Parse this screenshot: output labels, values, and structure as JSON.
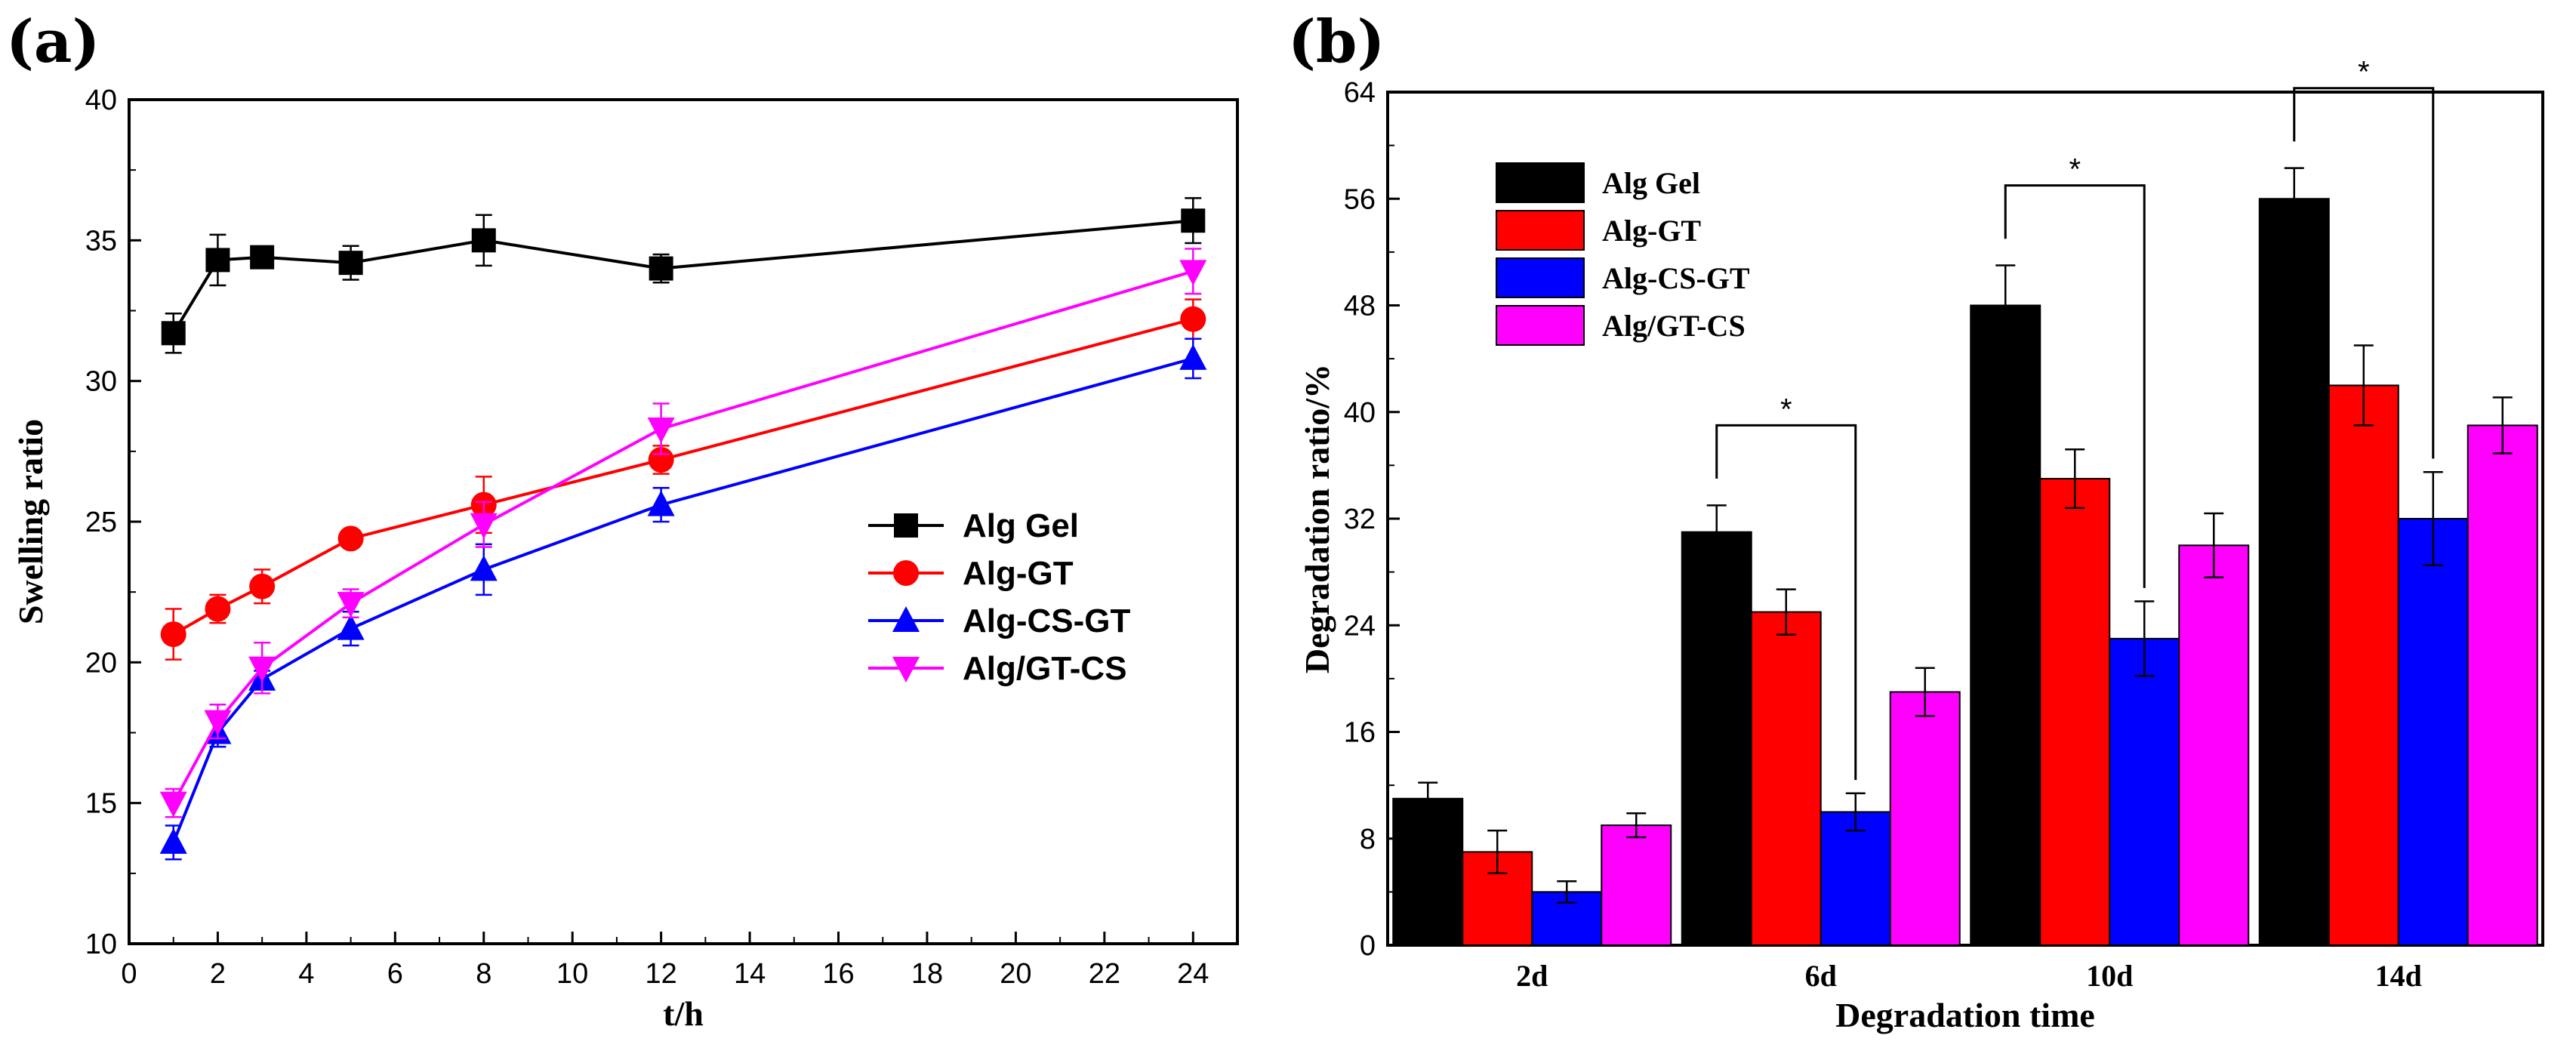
{
  "panels": {
    "a": {
      "label": "(a)"
    },
    "b": {
      "label": "(b)"
    }
  },
  "chart_data": [
    {
      "id": "a",
      "type": "line",
      "title": "",
      "xlabel": "t/h",
      "ylabel": "Swelling ratio",
      "xlim": [
        0,
        25
      ],
      "ylim": [
        10,
        40
      ],
      "xticks": [
        0,
        2,
        4,
        6,
        8,
        10,
        12,
        14,
        16,
        18,
        20,
        22,
        24
      ],
      "yticks": [
        10,
        15,
        20,
        25,
        30,
        35,
        40
      ],
      "legend_position": "center-right",
      "x": [
        1,
        2,
        3,
        5,
        8,
        12,
        24
      ],
      "series": [
        {
          "name": "Alg Gel",
          "color": "#000000",
          "marker": "square",
          "values": [
            31.7,
            34.3,
            34.4,
            34.2,
            35.0,
            34.0,
            35.7
          ],
          "errors": [
            0.7,
            0.9,
            0.3,
            0.6,
            0.9,
            0.5,
            0.8
          ]
        },
        {
          "name": "Alg-GT",
          "color": "#ff0000",
          "marker": "circle",
          "values": [
            21.0,
            21.9,
            22.7,
            24.4,
            25.6,
            27.2,
            32.2
          ],
          "errors": [
            0.9,
            0.5,
            0.6,
            0.3,
            1.0,
            0.5,
            0.7
          ]
        },
        {
          "name": "Alg-CS-GT",
          "color": "#0000ff",
          "marker": "triangle-up",
          "values": [
            13.6,
            17.5,
            19.4,
            21.2,
            23.3,
            25.6,
            30.8
          ],
          "errors": [
            0.6,
            0.5,
            0.3,
            0.6,
            0.9,
            0.6,
            0.7
          ]
        },
        {
          "name": "Alg/GT-CS",
          "color": "#ff00ff",
          "marker": "triangle-down",
          "values": [
            15.0,
            17.9,
            19.8,
            22.1,
            24.9,
            28.3,
            33.9
          ],
          "errors": [
            0.5,
            0.6,
            0.9,
            0.5,
            0.8,
            0.9,
            0.8
          ]
        }
      ]
    },
    {
      "id": "b",
      "type": "bar",
      "title": "",
      "xlabel": "Degradation time",
      "ylabel": "Degradation ratio/%",
      "ylim": [
        0,
        64
      ],
      "yticks": [
        0,
        8,
        16,
        24,
        32,
        40,
        48,
        56,
        64
      ],
      "legend_position": "top-left",
      "categories": [
        "2d",
        "6d",
        "10d",
        "14d"
      ],
      "series": [
        {
          "name": "Alg Gel",
          "color": "#000000",
          "values": [
            11,
            31,
            48,
            56
          ],
          "errors": [
            1.2,
            2.0,
            3.0,
            2.3
          ]
        },
        {
          "name": "Alg-GT",
          "color": "#ff0000",
          "values": [
            7,
            25,
            35,
            42
          ],
          "errors": [
            1.6,
            1.7,
            2.2,
            3.0
          ]
        },
        {
          "name": "Alg-CS-GT",
          "color": "#0000ff",
          "values": [
            4,
            10,
            23,
            32
          ],
          "errors": [
            0.8,
            1.4,
            2.8,
            3.5
          ]
        },
        {
          "name": "Alg/GT-CS",
          "color": "#ff00ff",
          "values": [
            9,
            19,
            30,
            39
          ],
          "errors": [
            0.9,
            1.8,
            2.4,
            2.1
          ]
        }
      ],
      "annotations": [
        {
          "text": "*",
          "category": "6d",
          "between": [
            "Alg Gel",
            "Alg-CS-GT"
          ]
        },
        {
          "text": "*",
          "category": "10d",
          "between": [
            "Alg Gel",
            "Alg-CS-GT"
          ]
        },
        {
          "text": "*",
          "category": "14d",
          "between": [
            "Alg Gel",
            "Alg-CS-GT"
          ]
        }
      ]
    }
  ]
}
